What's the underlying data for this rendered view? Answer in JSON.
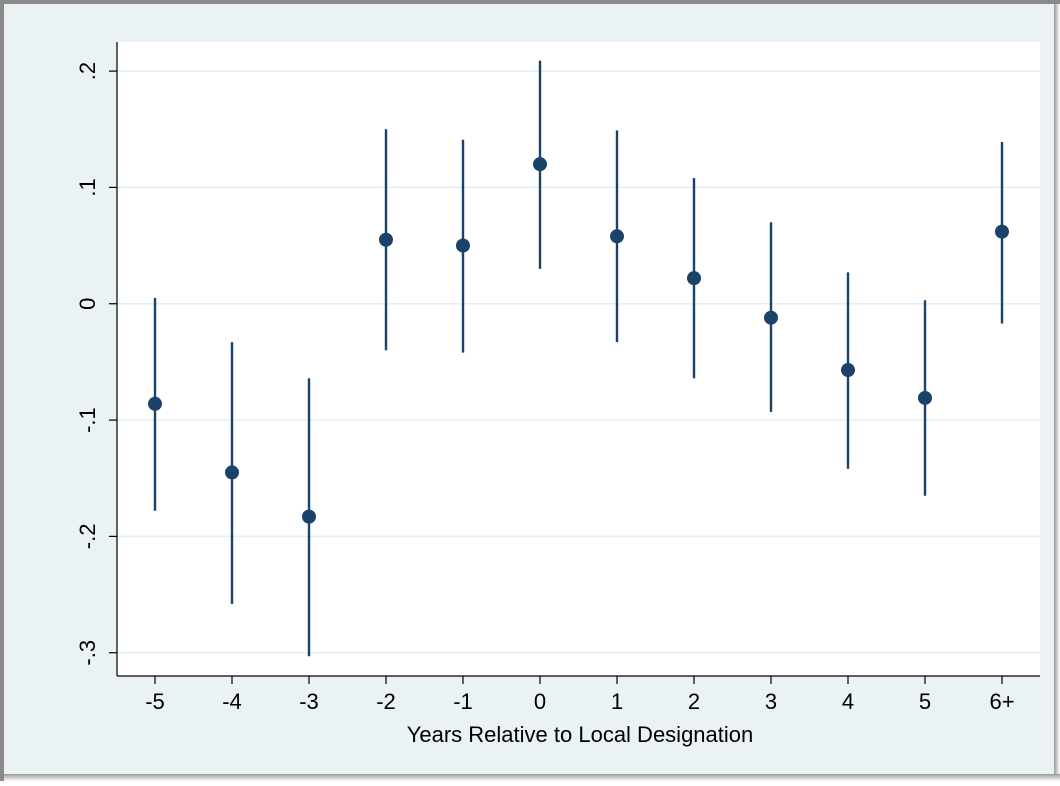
{
  "chart_data": {
    "type": "scatter",
    "title": "",
    "xlabel": "Years Relative to Local Designation",
    "ylabel": "",
    "categories": [
      "-5",
      "-4",
      "-3",
      "-2",
      "-1",
      "0",
      "1",
      "2",
      "3",
      "4",
      "5",
      "6+"
    ],
    "estimates": [
      -0.086,
      -0.145,
      -0.183,
      0.055,
      0.05,
      0.12,
      0.058,
      0.022,
      -0.012,
      -0.057,
      -0.081,
      0.062
    ],
    "ci_lower": [
      -0.178,
      -0.258,
      -0.303,
      -0.04,
      -0.042,
      0.03,
      -0.033,
      -0.064,
      -0.093,
      -0.142,
      -0.165,
      -0.017
    ],
    "ci_upper": [
      0.005,
      -0.033,
      -0.064,
      0.15,
      0.141,
      0.209,
      0.149,
      0.108,
      0.07,
      0.027,
      0.003,
      0.139
    ],
    "yticks": [
      -0.3,
      -0.2,
      -0.1,
      0,
      0.1,
      0.2
    ],
    "ytick_labels": [
      "-.3",
      "-.2",
      "-.1",
      "0",
      ".1",
      ".2"
    ],
    "ylim": [
      -0.32,
      0.225
    ],
    "grid": true,
    "legend": "none",
    "colors": {
      "marker": "#1b4268",
      "grid": "#e4eef2",
      "outer_background": "#eaf2f3",
      "plot_background": "#ffffff",
      "axis": "#000000"
    }
  }
}
